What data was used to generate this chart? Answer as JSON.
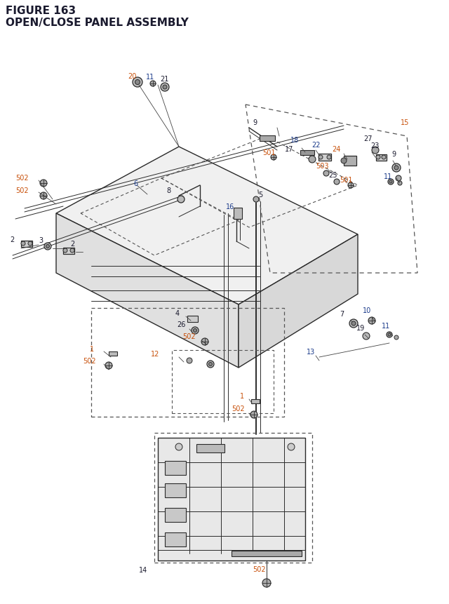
{
  "title_line1": "FIGURE 163",
  "title_line2": "OPEN/CLOSE PANEL ASSEMBLY",
  "title_color": "#1a1a2e",
  "title_fontsize": 11,
  "background_color": "#ffffff",
  "lc_default": "#1a1a2e",
  "lc_orange": "#c8500a",
  "lc_blue": "#1a3a8a",
  "lc_teal": "#0a6a6a",
  "label_fontsize": 7.0,
  "dc": "#2a2a2a",
  "lw_thin": 0.7,
  "lw_med": 1.0,
  "lw_thick": 1.4
}
